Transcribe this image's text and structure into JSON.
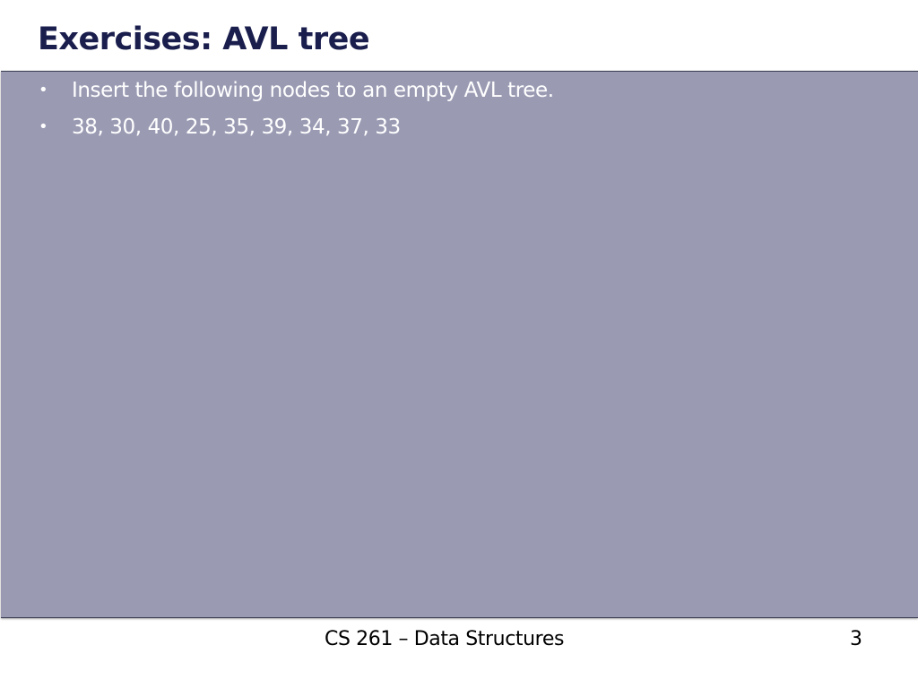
{
  "slide": {
    "title": "Exercises: AVL tree",
    "bullets": [
      {
        "marker": "•",
        "text": "Insert the following nodes to an empty AVL tree."
      },
      {
        "marker": "•",
        "text": "38, 30, 40, 25, 35, 39, 34, 37, 33"
      }
    ],
    "footer": "CS 261 – Data Structures",
    "page_number": "3"
  },
  "colors": {
    "title": "#1a1e4d",
    "panel_background": "#9a9bb3",
    "bullet_text": "#ffffff",
    "footer_text": "#000000"
  }
}
